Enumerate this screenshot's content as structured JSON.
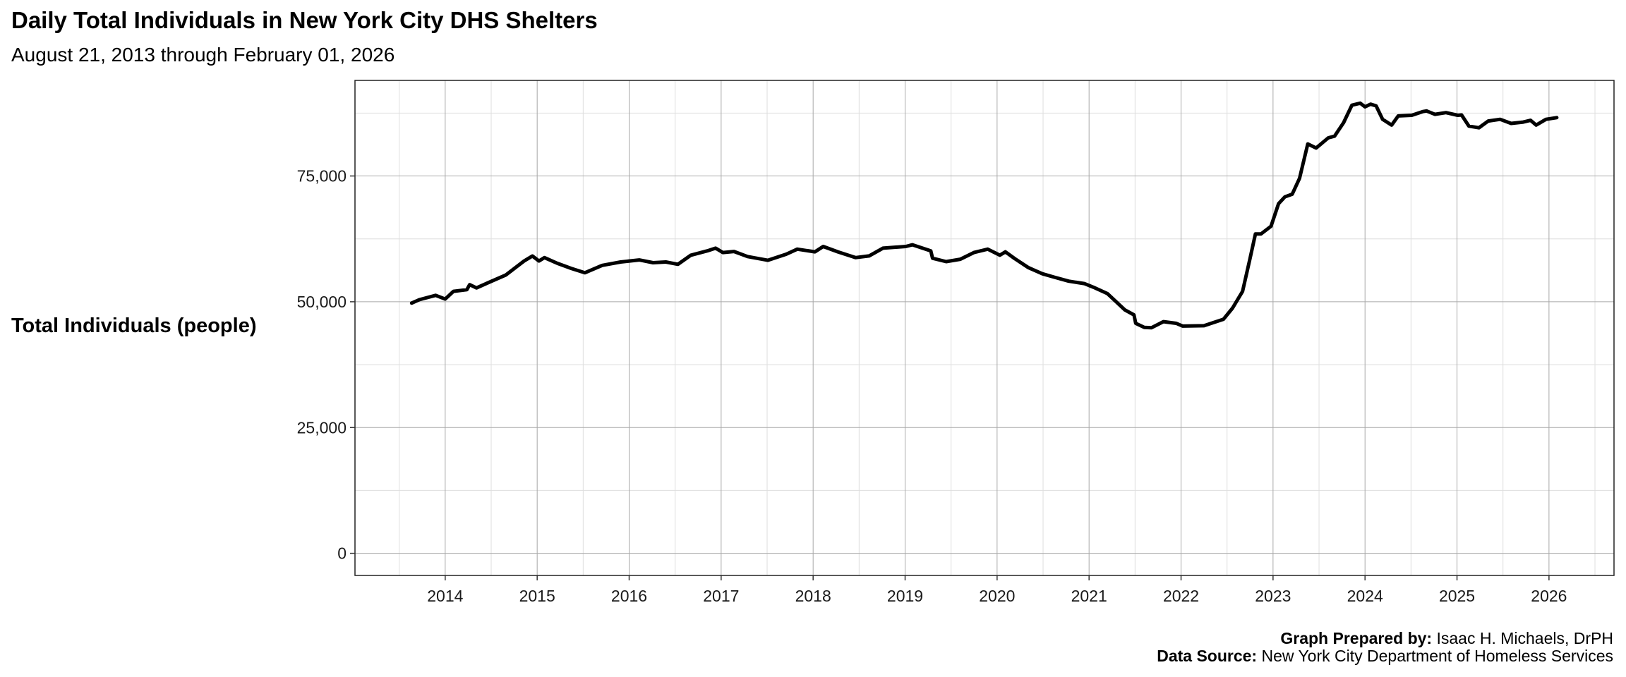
{
  "chart_data": {
    "type": "line",
    "title": "Daily Total Individuals in New York City DHS Shelters",
    "subtitle": "August 21, 2013 through February 01, 2026",
    "xlabel": "",
    "ylabel": "Total Individuals (people)",
    "xlim": [
      "2013-01-08",
      "2026-09-16"
    ],
    "ylim": [
      -4400,
      94000
    ],
    "x_ticks": [
      "2014",
      "2015",
      "2016",
      "2017",
      "2018",
      "2019",
      "2020",
      "2021",
      "2022",
      "2023",
      "2024",
      "2025",
      "2026"
    ],
    "y_ticks": [
      0,
      25000,
      50000,
      75000
    ],
    "y_tick_labels": [
      "0",
      "25,000",
      "50,000",
      "75,000"
    ],
    "grid": true,
    "line_color": "#000000",
    "series": [
      {
        "x": [
          "2013-08-21",
          "2013-09-20",
          "2013-11-24",
          "2014-01-01",
          "2014-02-03",
          "2014-03-28",
          "2014-04-08",
          "2014-05-05",
          "2014-06-28",
          "2014-08-29",
          "2014-09-24",
          "2014-11-10",
          "2014-12-13",
          "2015-01-08",
          "2015-01-30",
          "2015-03-22",
          "2015-05-16",
          "2015-07-09",
          "2015-09-16",
          "2015-11-28",
          "2016-02-10",
          "2016-04-05",
          "2016-05-26",
          "2016-07-13",
          "2016-09-02",
          "2016-11-07",
          "2016-12-10",
          "2017-01-08",
          "2017-02-21",
          "2017-04-16",
          "2017-07-05",
          "2017-09-16",
          "2017-10-30",
          "2018-01-08",
          "2018-02-10",
          "2018-04-09",
          "2018-06-18",
          "2018-08-11",
          "2018-10-05",
          "2019-01-04",
          "2019-01-30",
          "2019-04-13",
          "2019-04-20",
          "2019-06-13",
          "2019-08-08",
          "2019-10-01",
          "2019-11-25",
          "2020-01-12",
          "2020-02-03",
          "2020-03-11",
          "2020-05-05",
          "2020-06-29",
          "2020-08-15",
          "2020-10-12",
          "2020-12-13",
          "2021-01-19",
          "2021-03-15",
          "2021-05-23",
          "2021-06-28",
          "2021-07-05",
          "2021-08-08",
          "2021-09-06",
          "2021-10-23",
          "2021-12-13",
          "2022-01-08",
          "2022-04-02",
          "2022-06-18",
          "2022-07-24",
          "2022-09-02",
          "2022-10-01",
          "2022-10-23",
          "2022-11-14",
          "2022-12-24",
          "2023-01-23",
          "2023-02-17",
          "2023-03-18",
          "2023-04-16",
          "2023-05-19",
          "2023-06-21",
          "2023-08-08",
          "2023-09-02",
          "2023-10-08",
          "2023-11-10",
          "2023-12-13",
          "2024-01-01",
          "2024-01-23",
          "2024-02-14",
          "2024-03-11",
          "2024-04-16",
          "2024-05-12",
          "2024-07-05",
          "2024-08-18",
          "2024-09-02",
          "2024-10-05",
          "2024-11-18",
          "2025-01-04",
          "2025-01-19",
          "2025-02-17",
          "2025-03-29",
          "2025-05-05",
          "2025-06-21",
          "2025-08-04",
          "2025-09-21",
          "2025-10-20",
          "2025-11-11",
          "2025-12-20",
          "2026-02-01"
        ],
        "y": [
          49730,
          50400,
          51270,
          50540,
          52080,
          52400,
          53400,
          52750,
          53950,
          55300,
          56300,
          58100,
          59100,
          58100,
          58780,
          57640,
          56630,
          55760,
          57240,
          57900,
          58310,
          57770,
          57900,
          57440,
          59250,
          60120,
          60660,
          59790,
          59990,
          58980,
          58240,
          59450,
          60460,
          59920,
          60990,
          59920,
          58780,
          59110,
          60660,
          60990,
          61330,
          60120,
          58650,
          57980,
          58450,
          59790,
          60460,
          59250,
          59920,
          58580,
          56770,
          55560,
          54890,
          54090,
          53620,
          52880,
          51610,
          48390,
          47390,
          45710,
          44910,
          44840,
          46050,
          45710,
          45170,
          45240,
          46510,
          48730,
          52080,
          58440,
          63470,
          63470,
          65010,
          69500,
          70840,
          71380,
          74530,
          81370,
          80560,
          82570,
          82910,
          85590,
          89070,
          89470,
          88740,
          89270,
          88940,
          86260,
          85120,
          86930,
          87060,
          87800,
          87930,
          87260,
          87600,
          87060,
          87130,
          84920,
          84580,
          85920,
          86260,
          85450,
          85720,
          86060,
          85120,
          86260,
          86600
        ]
      }
    ]
  },
  "caption": {
    "prepared_label": "Graph Prepared by:",
    "prepared_value": " Isaac H. Michaels, DrPH",
    "source_label": "Data Source:",
    "source_value": " New York City Department of Homeless Services"
  }
}
